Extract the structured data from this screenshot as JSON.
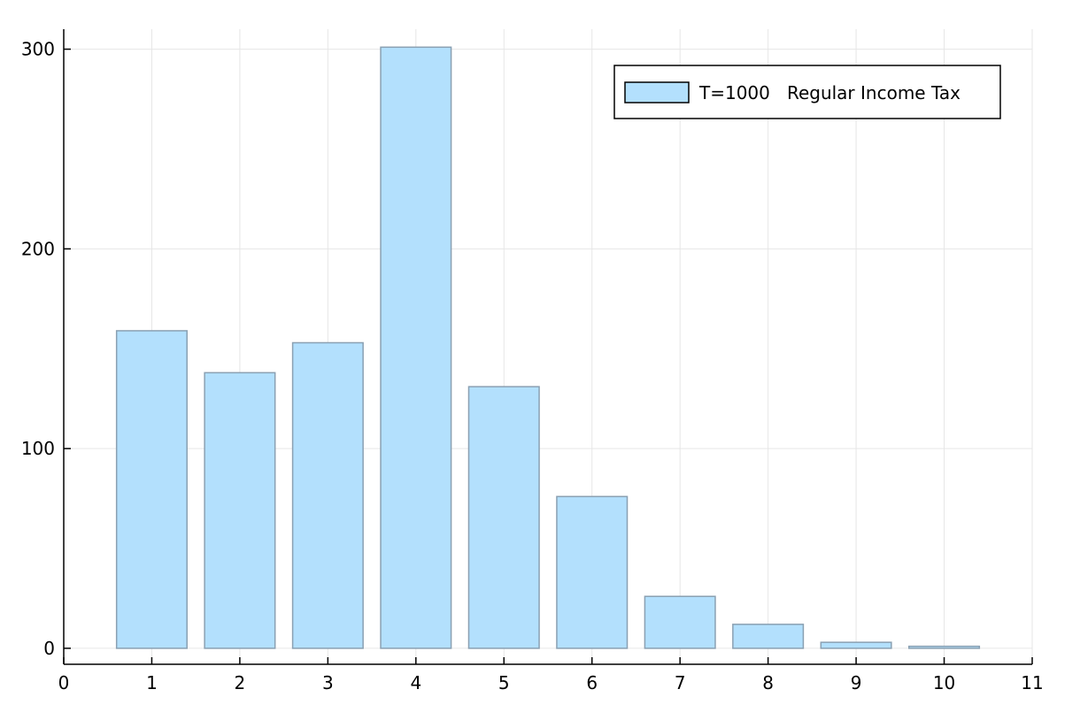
{
  "chart_data": {
    "type": "bar",
    "title": "",
    "xlabel": "",
    "ylabel": "",
    "categories": [
      1,
      2,
      3,
      4,
      5,
      6,
      7,
      8,
      9,
      10
    ],
    "series": [
      {
        "name": "T=1000   Regular Income Tax",
        "values": [
          159,
          138,
          153,
          301,
          131,
          76,
          26,
          12,
          3,
          1
        ]
      }
    ],
    "xlim": [
      0,
      11
    ],
    "ylim": [
      -8,
      310
    ],
    "xticks": [
      0,
      1,
      2,
      3,
      4,
      5,
      6,
      7,
      8,
      9,
      10,
      11
    ],
    "yticks": [
      0,
      100,
      200,
      300
    ],
    "grid": true,
    "legend_position": "top-right",
    "colors": {
      "bar_fill": "#b3e0fd",
      "bar_stroke": "#8aa0b2",
      "grid": "#e6e6e6",
      "axis": "#000000"
    }
  }
}
